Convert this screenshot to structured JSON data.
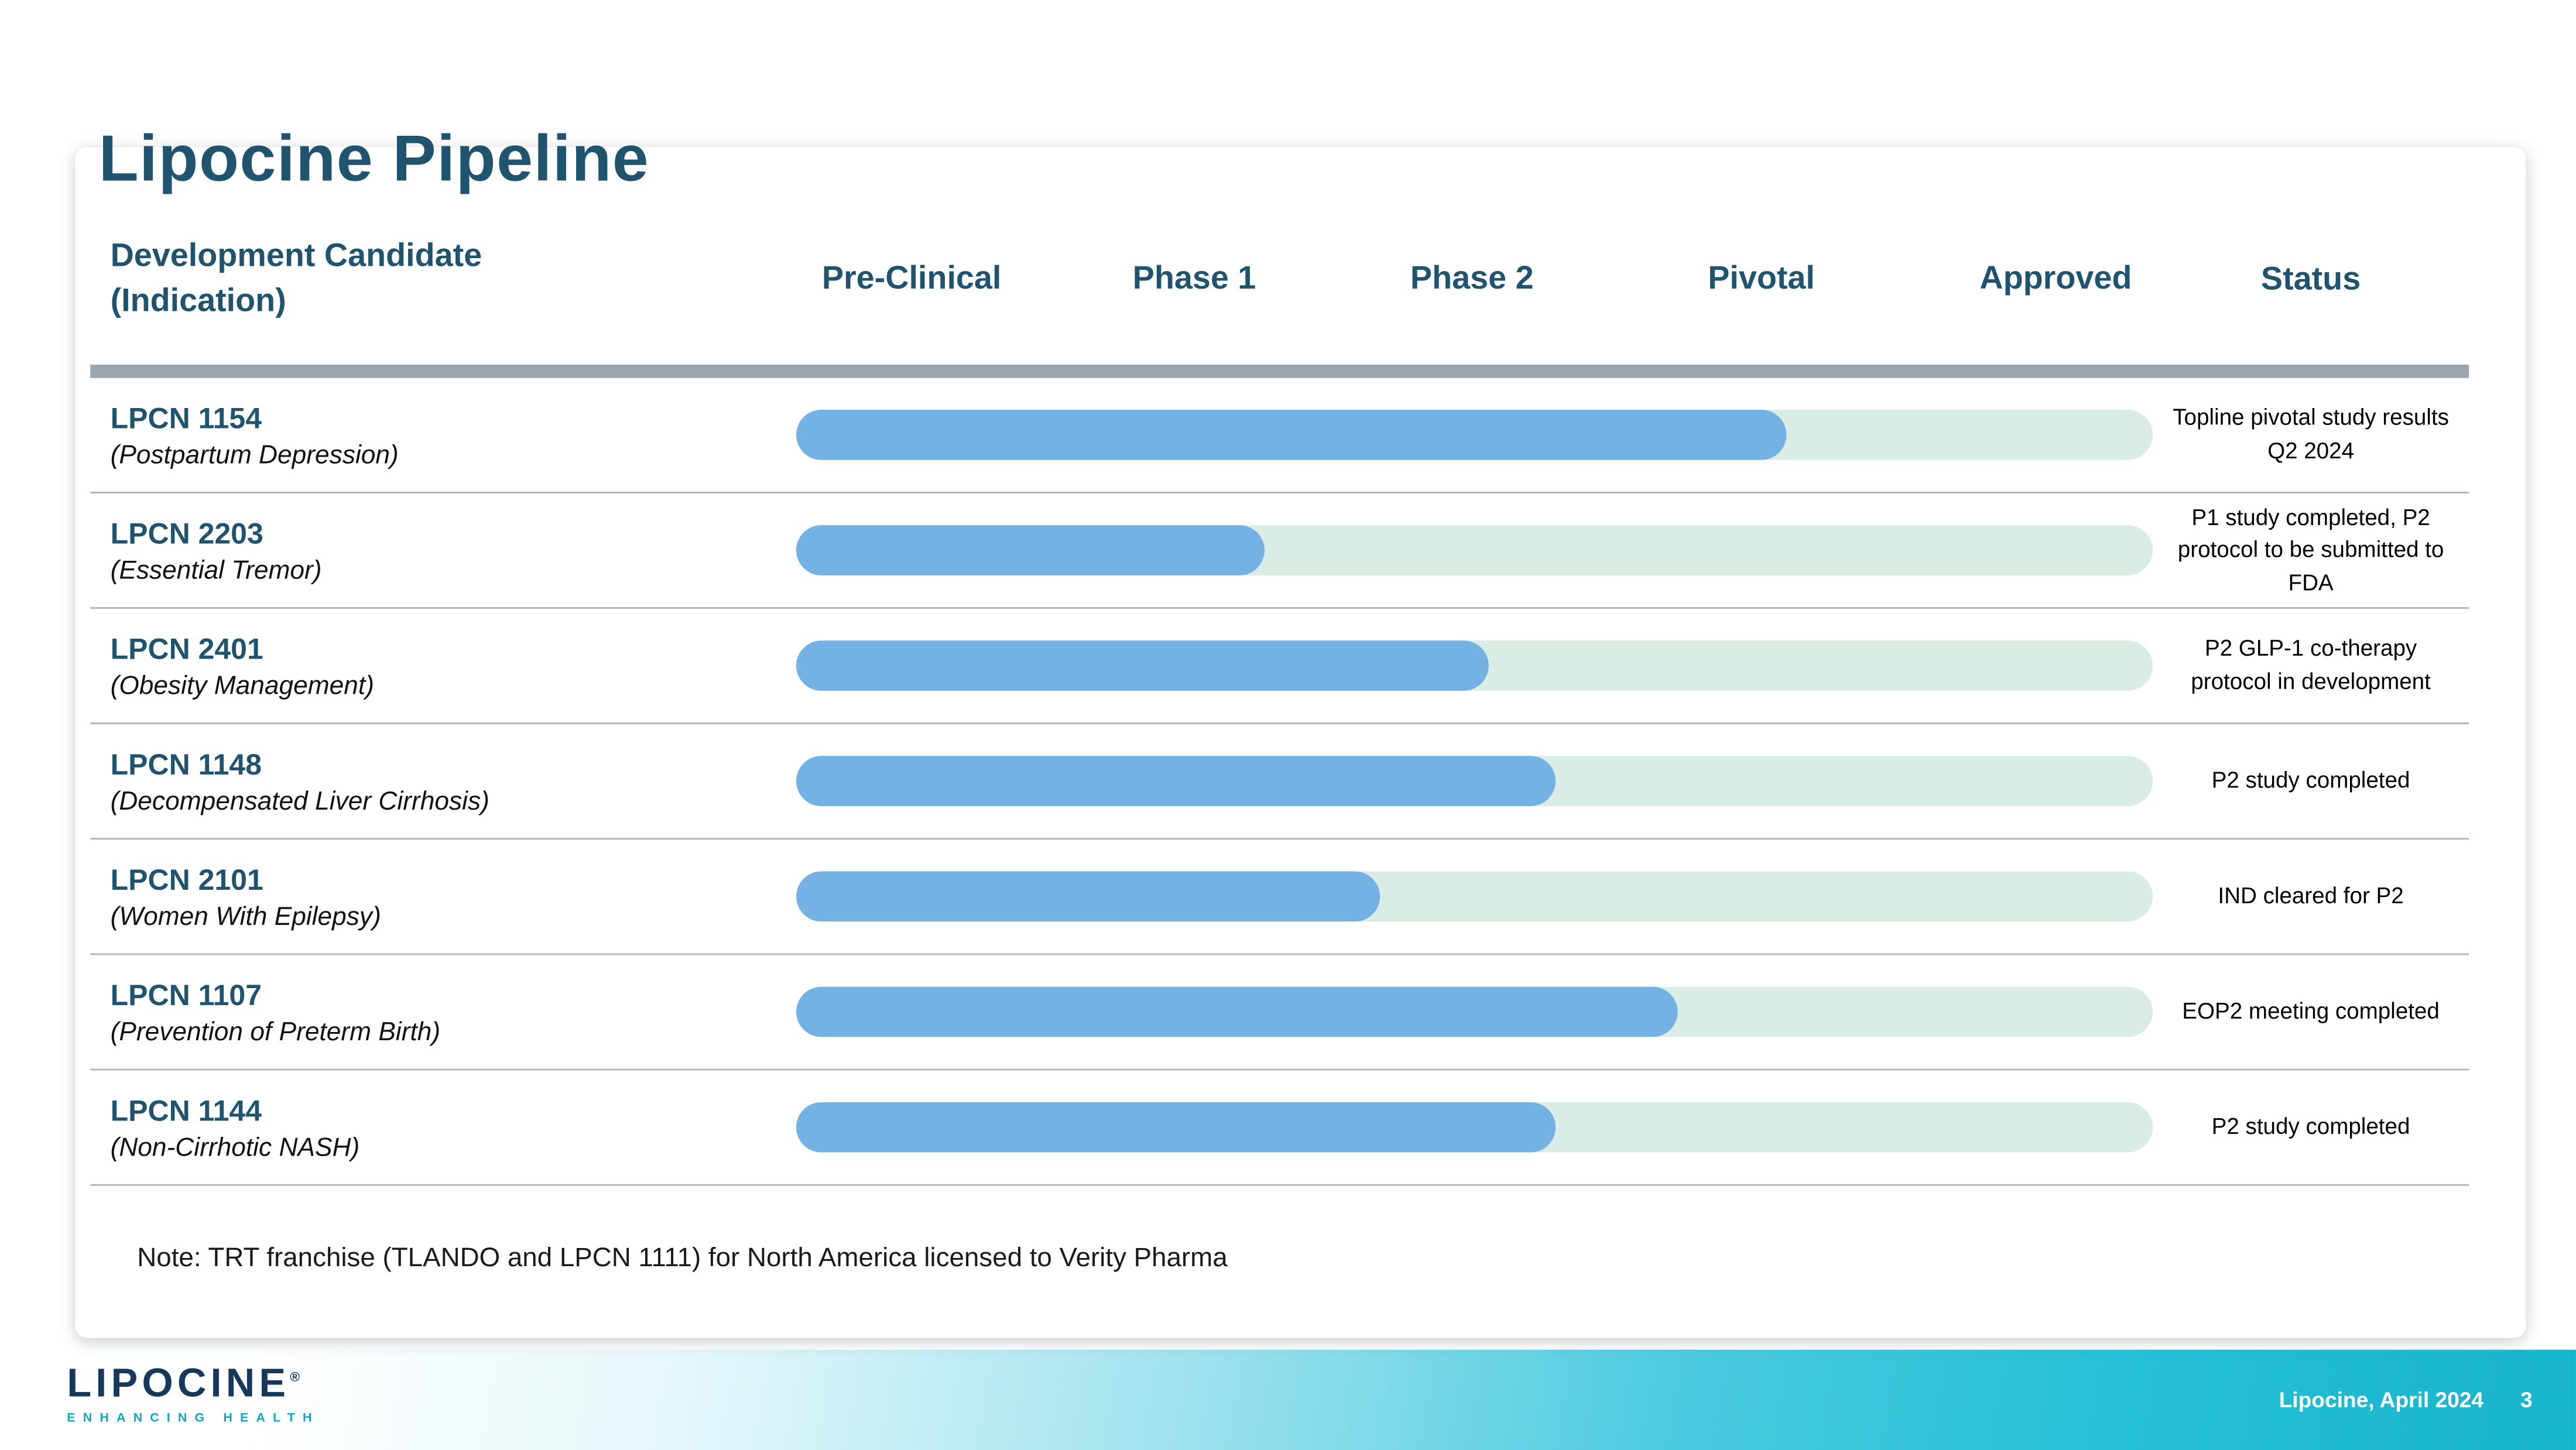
{
  "slide": {
    "title": "Lipocine Pipeline",
    "note": "Note:  TRT franchise (TLANDO and LPCN 1111) for North America licensed to Verity Pharma"
  },
  "table": {
    "candidate_header_line1": "Development Candidate",
    "candidate_header_line2": "(Indication)",
    "status_header": "Status",
    "phase_columns": [
      "Pre-Clinical",
      "Phase 1",
      "Phase 2",
      "Pivotal",
      "Approved"
    ],
    "rows": [
      {
        "candidate": "LPCN 1154",
        "indication": "(Postpartum Depression)",
        "progress_pct": 73,
        "status": "Topline pivotal study results Q2 2024"
      },
      {
        "candidate": "LPCN 2203",
        "indication": "(Essential Tremor)",
        "progress_pct": 34.5,
        "status": "P1 study completed, P2 protocol to be submitted to FDA"
      },
      {
        "candidate": "LPCN 2401",
        "indication": "(Obesity Management)",
        "progress_pct": 51,
        "status": "P2 GLP-1 co-therapy protocol in development"
      },
      {
        "candidate": "LPCN 1148",
        "indication": "(Decompensated Liver Cirrhosis)",
        "progress_pct": 56,
        "status": "P2 study completed"
      },
      {
        "candidate": "LPCN 2101",
        "indication": "(Women With Epilepsy)",
        "progress_pct": 43,
        "status": "IND cleared for P2"
      },
      {
        "candidate": "LPCN 1107",
        "indication": "(Prevention of Preterm Birth)",
        "progress_pct": 65,
        "status": "EOP2 meeting completed"
      },
      {
        "candidate": "LPCN 1144",
        "indication": "(Non-Cirrhotic NASH)",
        "progress_pct": 56,
        "status": "P2 study completed"
      }
    ]
  },
  "footer": {
    "logo_text": "LIPOCINE",
    "logo_registered": "®",
    "logo_tagline": "ENHANCING HEALTH",
    "date_label": "Lipocine, April 2024",
    "page_number": "3"
  },
  "colors": {
    "heading_navy": "#20536E",
    "bar_fill_blue": "#74B2E3",
    "bar_track_mint": "#DAEDE5",
    "header_rule_gray": "#9BA7AF",
    "row_divider_gray": "#ADB5BC",
    "footer_teal": "#18B4CC",
    "logo_navy": "#16395B",
    "logo_tagline_teal": "#12A7BE"
  },
  "chart_data": {
    "type": "bar",
    "orientation": "horizontal",
    "title": "Lipocine Pipeline",
    "phase_axis": [
      "Pre-Clinical",
      "Phase 1",
      "Phase 2",
      "Pivotal",
      "Approved"
    ],
    "categories": [
      "LPCN 1154 (Postpartum Depression)",
      "LPCN 2203 (Essential Tremor)",
      "LPCN 2401 (Obesity Management)",
      "LPCN 1148 (Decompensated Liver Cirrhosis)",
      "LPCN 2101 (Women With Epilepsy)",
      "LPCN 1107 (Prevention of Preterm Birth)",
      "LPCN 1144 (Non-Cirrhotic NASH)"
    ],
    "values_pct_of_full_track": [
      73,
      34.5,
      51,
      56,
      43,
      65,
      56
    ],
    "annotations": [
      "Topline pivotal study results Q2 2024",
      "P1 study completed, P2 protocol to be submitted to FDA",
      "P2 GLP-1 co-therapy protocol in development",
      "P2 study completed",
      "IND cleared for P2",
      "EOP2 meeting completed",
      "P2 study completed"
    ],
    "xlim": [
      0,
      100
    ],
    "grid": false,
    "legend": false
  }
}
